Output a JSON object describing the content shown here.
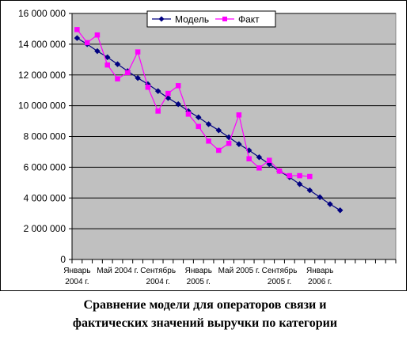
{
  "caption": {
    "line1": "Сравнение модели для операторов связи и",
    "line2": "фактических значений выручки по категории"
  },
  "chart_data": {
    "type": "line",
    "title": "",
    "xlabel": "",
    "ylabel": "",
    "ylim": [
      0,
      16000000
    ],
    "yticks": [
      0,
      2000000,
      4000000,
      6000000,
      8000000,
      10000000,
      12000000,
      14000000,
      16000000
    ],
    "ytick_labels": [
      "0",
      "2 000 000",
      "4 000 000",
      "6 000 000",
      "8 000 000",
      "10 000 000",
      "12 000 000",
      "14 000 000",
      "16 000 000"
    ],
    "x_count": 32,
    "x_labels": [
      {
        "index": 0,
        "lines": [
          "Январь",
          "2004 г."
        ]
      },
      {
        "index": 4,
        "lines": [
          "Май 2004 г."
        ]
      },
      {
        "index": 8,
        "lines": [
          "Сентябрь",
          "2004 г."
        ]
      },
      {
        "index": 12,
        "lines": [
          "Январь",
          "2005 г."
        ]
      },
      {
        "index": 16,
        "lines": [
          "Май 2005 г."
        ]
      },
      {
        "index": 20,
        "lines": [
          "Сентябрь",
          "2005 г."
        ]
      },
      {
        "index": 24,
        "lines": [
          "Январь",
          "2006 г."
        ]
      }
    ],
    "grid": true,
    "legend_position": "top",
    "plot_background": "#c0c0c0",
    "series": [
      {
        "name": "Модель",
        "color": "#000080",
        "marker": "diamond",
        "values": [
          14400000,
          14000000,
          13550000,
          13150000,
          12700000,
          12250000,
          11800000,
          11400000,
          10950000,
          10500000,
          10100000,
          9650000,
          9250000,
          8800000,
          8400000,
          7950000,
          7500000,
          7100000,
          6650000,
          6200000,
          5750000,
          5350000,
          4900000,
          4500000,
          4050000,
          3600000,
          3200000
        ]
      },
      {
        "name": "Факт",
        "color": "#ff00ff",
        "marker": "square",
        "values": [
          14950000,
          14100000,
          14600000,
          12650000,
          11750000,
          12150000,
          13500000,
          11200000,
          9650000,
          10800000,
          11300000,
          9450000,
          8650000,
          7700000,
          7100000,
          7550000,
          9400000,
          6550000,
          5950000,
          6450000,
          5750000,
          5450000,
          5450000,
          5400000
        ]
      }
    ]
  }
}
